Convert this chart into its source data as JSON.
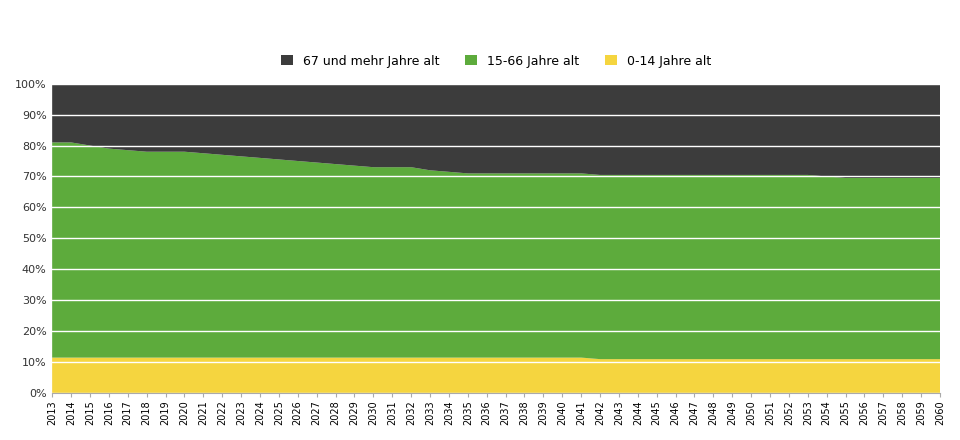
{
  "years": [
    2013,
    2014,
    2015,
    2016,
    2017,
    2018,
    2019,
    2020,
    2021,
    2022,
    2023,
    2024,
    2025,
    2026,
    2027,
    2028,
    2029,
    2030,
    2031,
    2032,
    2033,
    2034,
    2035,
    2036,
    2037,
    2038,
    2039,
    2040,
    2041,
    2042,
    2043,
    2044,
    2045,
    2046,
    2047,
    2048,
    2049,
    2050,
    2051,
    2052,
    2053,
    2054,
    2055,
    2056,
    2057,
    2058,
    2059,
    2060
  ],
  "young": [
    11.5,
    11.5,
    11.5,
    11.5,
    11.5,
    11.5,
    11.5,
    11.5,
    11.5,
    11.5,
    11.5,
    11.5,
    11.5,
    11.5,
    11.5,
    11.5,
    11.5,
    11.5,
    11.5,
    11.5,
    11.5,
    11.5,
    11.5,
    11.5,
    11.5,
    11.5,
    11.5,
    11.5,
    11.5,
    11.0,
    11.0,
    11.0,
    11.0,
    11.0,
    11.0,
    11.0,
    11.0,
    11.0,
    11.0,
    11.0,
    11.0,
    11.0,
    11.0,
    11.0,
    11.0,
    11.0,
    11.0,
    11.0
  ],
  "working": [
    69.5,
    69.5,
    68.5,
    67.5,
    67.0,
    66.5,
    66.5,
    66.5,
    66.0,
    65.5,
    65.0,
    64.5,
    64.0,
    63.5,
    63.0,
    62.5,
    62.0,
    61.5,
    61.5,
    61.5,
    60.5,
    60.0,
    59.5,
    59.5,
    59.5,
    59.5,
    59.5,
    59.5,
    59.5,
    59.5,
    59.5,
    59.5,
    59.5,
    59.5,
    59.5,
    59.5,
    59.5,
    59.5,
    59.5,
    59.5,
    59.5,
    59.0,
    58.5,
    58.5,
    58.5,
    58.5,
    58.5,
    58.5
  ],
  "old": [
    19.0,
    19.0,
    20.0,
    21.0,
    21.5,
    22.0,
    22.0,
    22.0,
    22.5,
    23.0,
    23.5,
    24.0,
    24.5,
    25.0,
    25.5,
    26.0,
    26.5,
    27.0,
    27.0,
    27.0,
    28.0,
    28.5,
    29.0,
    29.0,
    29.0,
    29.0,
    29.0,
    29.0,
    29.0,
    29.5,
    29.5,
    29.5,
    29.5,
    29.5,
    29.5,
    29.5,
    29.5,
    29.5,
    29.5,
    29.5,
    29.5,
    30.0,
    30.5,
    30.5,
    30.5,
    30.5,
    30.5,
    30.5
  ],
  "color_young": "#F5D53F",
  "color_working": "#5DAB3C",
  "color_old": "#3C3C3C",
  "label_old": "67 und mehr Jahre alt",
  "label_working": "15-66 Jahre alt",
  "label_young": "0-14 Jahre alt",
  "bg_color": "#FFFFFF",
  "plot_bg_color": "#F0F0F0",
  "grid_color": "#FFFFFF",
  "yticks": [
    0,
    10,
    20,
    30,
    40,
    50,
    60,
    70,
    80,
    90,
    100
  ],
  "ylim": [
    0,
    100
  ]
}
